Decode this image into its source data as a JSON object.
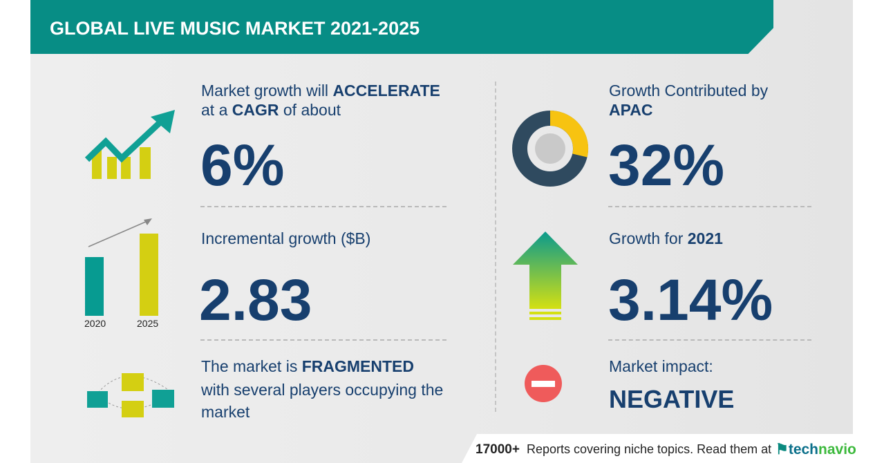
{
  "header": {
    "title": "GLOBAL LIVE MUSIC MARKET 2021-2025"
  },
  "cagr": {
    "line1_pre": "Market growth will ",
    "line1_bold": "ACCELERATE",
    "line2_pre": "at a ",
    "line2_bold": "CAGR",
    "line2_post": "  of about",
    "value": "6%"
  },
  "incremental": {
    "label": "Incremental growth ($B)",
    "value": "2.83",
    "years": [
      "2020",
      "2025"
    ]
  },
  "fragmented": {
    "line1_pre": "The market is ",
    "line1_bold": "FRAGMENTED",
    "line2": "with several players occupying the",
    "line3": "market"
  },
  "apac": {
    "line1": "Growth Contributed by",
    "line2": "APAC",
    "value": "32%",
    "share": 0.32
  },
  "growth_2021": {
    "label_pre": "Growth for ",
    "label_bold": "2021",
    "value": "3.14%"
  },
  "impact": {
    "label": "Market impact:",
    "value": "NEGATIVE"
  },
  "footer": {
    "count": "17000+",
    "text": "Reports covering niche topics. Read them at",
    "logo_a": "tech",
    "logo_b": "navio"
  },
  "colors": {
    "teal": "#078d85",
    "navy": "#173f6e",
    "yellow": "#d4cf12",
    "red": "#ef5b5b",
    "donut_dark": "#2f4a5f",
    "donut_yellow": "#f7c311"
  }
}
